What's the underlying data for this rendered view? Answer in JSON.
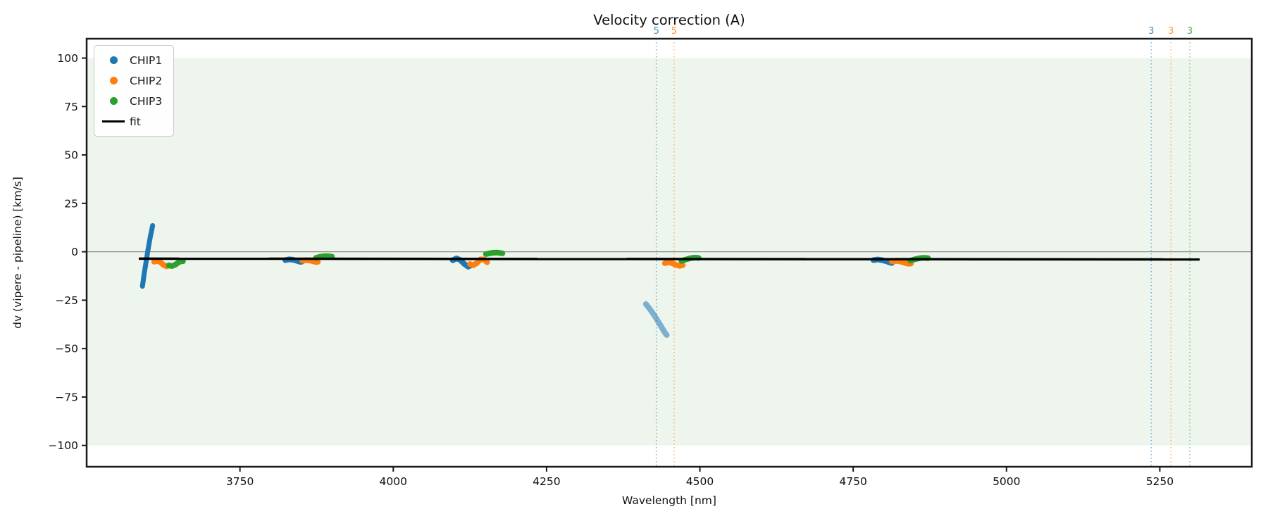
{
  "title": "Velocity correction (A)",
  "chart_data": {
    "type": "scatter",
    "title": "Velocity correction (A)",
    "xlabel": "Wavelength [nm]",
    "ylabel": "dv (vipere - pipeline) [km/s]",
    "xlim": [
      3500,
      5400
    ],
    "ylim": [
      -111,
      110
    ],
    "xticks": [
      3750,
      4000,
      4250,
      4500,
      4750,
      5000,
      5250
    ],
    "yticks": [
      100,
      75,
      50,
      25,
      0,
      -25,
      -50,
      -75,
      -100
    ],
    "grid": false,
    "legend_position": "upper left",
    "band": {
      "ymin": -100,
      "ymax": 100,
      "color": "#edf5ed"
    },
    "zero_line": {
      "y": 0,
      "color": "#8a8a8a"
    },
    "legend": [
      {
        "label": "CHIP1",
        "marker": "dot",
        "color": "#1f77b4"
      },
      {
        "label": "CHIP2",
        "marker": "dot",
        "color": "#ff7f0e"
      },
      {
        "label": "CHIP3",
        "marker": "dot",
        "color": "#2ca02c"
      },
      {
        "label": "fit",
        "marker": "line",
        "color": "#000000"
      }
    ],
    "series": [
      {
        "name": "CHIP1",
        "color": "#1f77b4",
        "segments": [
          {
            "width": 7,
            "opacity": 1.0,
            "points": [
              [
                3591,
                -17.8
              ],
              [
                3592.5,
                -14.5
              ],
              [
                3594,
                -11
              ],
              [
                3596,
                -7
              ],
              [
                3598,
                -3
              ],
              [
                3600,
                1
              ],
              [
                3602,
                4.5
              ],
              [
                3604,
                8
              ],
              [
                3606,
                11
              ],
              [
                3607.5,
                13.5
              ]
            ]
          },
          {
            "width": 8,
            "opacity": 1.0,
            "points": [
              [
                3824,
                -4.3
              ],
              [
                3830,
                -3.9
              ],
              [
                3836,
                -4.1
              ],
              [
                3842,
                -4.6
              ],
              [
                3848,
                -5.2
              ],
              [
                3851,
                -5.1
              ]
            ]
          },
          {
            "width": 8,
            "opacity": 1.0,
            "points": [
              [
                4097,
                -4.4
              ],
              [
                4103,
                -3.4
              ],
              [
                4109,
                -4.2
              ],
              [
                4116,
                -6.3
              ],
              [
                4122,
                -7.7
              ],
              [
                4128,
                -6.9
              ]
            ]
          },
          {
            "width": 8,
            "opacity": 0.55,
            "points": [
              [
                4412,
                -27
              ],
              [
                4419,
                -29.8
              ],
              [
                4426,
                -33
              ],
              [
                4432,
                -36
              ],
              [
                4438,
                -39.2
              ],
              [
                4443,
                -41.8
              ],
              [
                4446,
                -43
              ]
            ]
          },
          {
            "width": 8,
            "opacity": 1.0,
            "points": [
              [
                4783,
                -4.3
              ],
              [
                4790,
                -4.0
              ],
              [
                4797,
                -4.3
              ],
              [
                4804,
                -4.9
              ],
              [
                4810,
                -5.6
              ],
              [
                4813,
                -5.8
              ]
            ]
          }
        ]
      },
      {
        "name": "CHIP2",
        "color": "#ff7f0e",
        "segments": [
          {
            "width": 8,
            "opacity": 1.0,
            "points": [
              [
                3610,
                -5.1
              ],
              [
                3615,
                -4.7
              ],
              [
                3620,
                -5.3
              ],
              [
                3625,
                -6.7
              ],
              [
                3630,
                -7.5
              ],
              [
                3634,
                -7.2
              ]
            ]
          },
          {
            "width": 8,
            "opacity": 1.0,
            "points": [
              [
                3852,
                -4.6
              ],
              [
                3858,
                -4.3
              ],
              [
                3864,
                -4.5
              ],
              [
                3870,
                -5.0
              ],
              [
                3875,
                -5.3
              ],
              [
                3877,
                -5.2
              ]
            ]
          },
          {
            "width": 8,
            "opacity": 1.0,
            "points": [
              [
                4125,
                -6.3
              ],
              [
                4130,
                -7.0
              ],
              [
                4136,
                -5.9
              ],
              [
                4142,
                -3.9
              ],
              [
                4148,
                -4.0
              ],
              [
                4153,
                -5.4
              ]
            ]
          },
          {
            "width": 8,
            "opacity": 1.0,
            "points": [
              [
                4443,
                -5.9
              ],
              [
                4449,
                -5.4
              ],
              [
                4455,
                -5.9
              ],
              [
                4461,
                -6.8
              ],
              [
                4467,
                -7.3
              ],
              [
                4472,
                -6.9
              ]
            ]
          },
          {
            "width": 8,
            "opacity": 1.0,
            "points": [
              [
                4813,
                -5.0
              ],
              [
                4820,
                -4.7
              ],
              [
                4827,
                -5.0
              ],
              [
                4834,
                -5.7
              ],
              [
                4840,
                -6.2
              ],
              [
                4844,
                -6.1
              ]
            ]
          }
        ]
      },
      {
        "name": "CHIP3",
        "color": "#2ca02c",
        "segments": [
          {
            "width": 8,
            "opacity": 1.0,
            "points": [
              [
                3634,
                -7.0
              ],
              [
                3639,
                -7.4
              ],
              [
                3645,
                -6.6
              ],
              [
                3650,
                -5.4
              ],
              [
                3655,
                -4.8
              ],
              [
                3657,
                -4.9
              ]
            ]
          },
          {
            "width": 8,
            "opacity": 1.0,
            "points": [
              [
                3874,
                -3.1
              ],
              [
                3880,
                -2.6
              ],
              [
                3886,
                -2.3
              ],
              [
                3892,
                -2.2
              ],
              [
                3897,
                -2.4
              ],
              [
                3900,
                -2.5
              ]
            ]
          },
          {
            "width": 8,
            "opacity": 1.0,
            "points": [
              [
                4151,
                -1.2
              ],
              [
                4157,
                -0.8
              ],
              [
                4163,
                -0.5
              ],
              [
                4169,
                -0.4
              ],
              [
                4174,
                -0.6
              ],
              [
                4178,
                -0.8
              ]
            ]
          },
          {
            "width": 8,
            "opacity": 1.0,
            "points": [
              [
                4470,
                -4.8
              ],
              [
                4476,
                -4.1
              ],
              [
                4482,
                -3.5
              ],
              [
                4488,
                -3.1
              ],
              [
                4494,
                -3.0
              ],
              [
                4498,
                -3.2
              ]
            ]
          },
          {
            "width": 8,
            "opacity": 1.0,
            "points": [
              [
                4843,
                -4.6
              ],
              [
                4850,
                -3.9
              ],
              [
                4857,
                -3.4
              ],
              [
                4864,
                -3.1
              ],
              [
                4870,
                -3.2
              ],
              [
                4872,
                -3.3
              ]
            ]
          }
        ]
      }
    ],
    "fit": {
      "name": "fit",
      "color": "#000000",
      "width": 3.5,
      "points": [
        [
          3585,
          -3.55
        ],
        [
          5315,
          -3.95
        ]
      ]
    },
    "vlines": [
      {
        "x": 4429,
        "label": "5",
        "color": "#1f77b4"
      },
      {
        "x": 4458,
        "label": "5",
        "color": "#ff7f0e"
      },
      {
        "x": 5236,
        "label": "3",
        "color": "#1f77b4"
      },
      {
        "x": 5268,
        "label": "3",
        "color": "#ff7f0e"
      },
      {
        "x": 5299,
        "label": "3",
        "color": "#2ca02c"
      }
    ]
  }
}
